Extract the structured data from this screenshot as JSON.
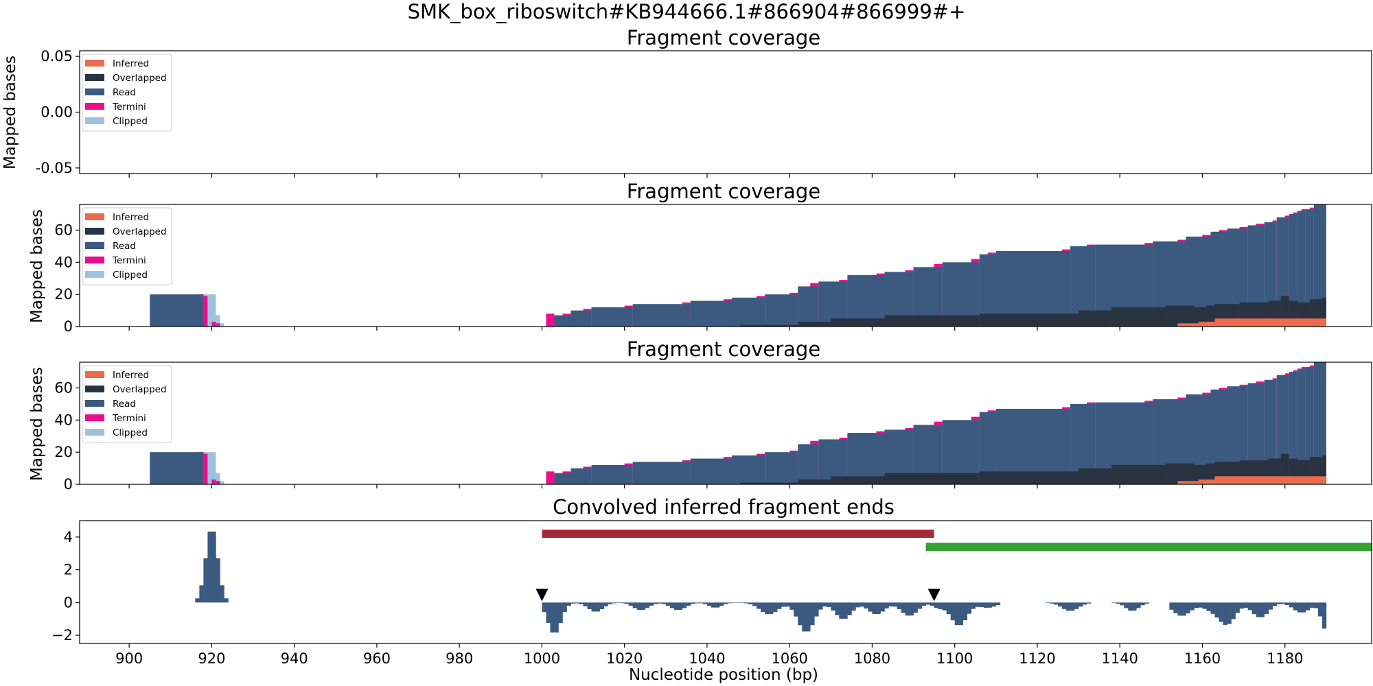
{
  "figure": {
    "suptitle": "SMK_box_riboswitch#KB944666.1#866904#866999#+",
    "x_label": "Nucleotide position (bp)",
    "x_ticks": [
      900,
      920,
      940,
      960,
      980,
      1000,
      1020,
      1040,
      1060,
      1080,
      1100,
      1120,
      1140,
      1160,
      1180
    ],
    "x_range": [
      888,
      1201
    ]
  },
  "colors": {
    "Inferred": "#ec6b4c",
    "Overlapped": "#283241",
    "Read": "#3c5a80",
    "Termini": "#ec0c8c",
    "Clipped": "#9ec2de",
    "Convolved": "#3c5a80",
    "Bar1": "#a52a3c",
    "Bar2": "#36a033"
  },
  "legend": [
    "Inferred",
    "Overlapped",
    "Read",
    "Termini",
    "Clipped"
  ],
  "chart_data": [
    {
      "type": "area",
      "title": "Fragment coverage",
      "ylabel": "Mapped bases",
      "ylim": [
        -0.055,
        0.055
      ],
      "y_ticks": [
        "0.05",
        "0.00",
        "-0.05"
      ],
      "y_tick_values": [
        0.05,
        0.0,
        -0.05
      ],
      "series": []
    },
    {
      "type": "area",
      "title": "Fragment coverage",
      "ylabel": "Mapped bases",
      "ylim": [
        0,
        76
      ],
      "y_ticks": [
        "0",
        "20",
        "40",
        "60"
      ],
      "y_tick_values": [
        0,
        20,
        40,
        60
      ],
      "coverage": {
        "clipped": [
          [
            918,
            921,
            20
          ],
          [
            921,
            922,
            7
          ],
          [
            922,
            923,
            2
          ]
        ],
        "read": [
          [
            905,
            918,
            20
          ],
          [
            1003,
            1007,
            7
          ],
          [
            1007,
            1012,
            10
          ],
          [
            1012,
            1022,
            12
          ],
          [
            1022,
            1036,
            14
          ],
          [
            1036,
            1046,
            16
          ],
          [
            1046,
            1054,
            18
          ],
          [
            1054,
            1062,
            20
          ],
          [
            1062,
            1067,
            25
          ],
          [
            1067,
            1074,
            28
          ],
          [
            1074,
            1083,
            32
          ],
          [
            1083,
            1090,
            34
          ],
          [
            1090,
            1097,
            37
          ],
          [
            1097,
            1106,
            40
          ],
          [
            1106,
            1110,
            45
          ],
          [
            1110,
            1128,
            47
          ],
          [
            1128,
            1134,
            50
          ],
          [
            1134,
            1148,
            51
          ],
          [
            1148,
            1156,
            53
          ],
          [
            1156,
            1162,
            56
          ],
          [
            1162,
            1166,
            59
          ],
          [
            1166,
            1171,
            61
          ],
          [
            1171,
            1175,
            63
          ],
          [
            1175,
            1178,
            65
          ],
          [
            1178,
            1181,
            68
          ],
          [
            1181,
            1183,
            70
          ],
          [
            1183,
            1185,
            72
          ],
          [
            1185,
            1187,
            73
          ],
          [
            1187,
            1190,
            76
          ]
        ],
        "termini": [
          [
            916,
            918,
            20
          ],
          [
            918,
            919,
            19
          ],
          [
            920,
            921,
            3
          ],
          [
            921,
            922,
            2
          ],
          [
            1001,
            1003,
            8
          ],
          [
            1005,
            1007,
            8
          ],
          [
            1010,
            1012,
            11
          ],
          [
            1020,
            1022,
            13
          ],
          [
            1034,
            1036,
            15
          ],
          [
            1044,
            1046,
            17
          ],
          [
            1052,
            1054,
            19
          ],
          [
            1060,
            1062,
            21
          ],
          [
            1065,
            1067,
            27
          ],
          [
            1072,
            1074,
            29
          ],
          [
            1081,
            1083,
            33
          ],
          [
            1088,
            1090,
            35
          ],
          [
            1095,
            1097,
            39
          ],
          [
            1104,
            1106,
            42
          ],
          [
            1108,
            1110,
            46
          ],
          [
            1126,
            1128,
            48
          ],
          [
            1132,
            1134,
            51
          ],
          [
            1146,
            1148,
            52
          ],
          [
            1154,
            1156,
            54
          ],
          [
            1160,
            1162,
            57
          ],
          [
            1164,
            1166,
            60
          ],
          [
            1169,
            1171,
            62
          ],
          [
            1173,
            1175,
            64
          ],
          [
            1177,
            1178,
            66
          ],
          [
            1180,
            1181,
            69
          ],
          [
            1182,
            1183,
            71
          ],
          [
            1184,
            1185,
            73
          ],
          [
            1186,
            1187,
            74
          ],
          [
            1188,
            1190,
            76
          ]
        ],
        "overlapped": [
          [
            1048,
            1062,
            1
          ],
          [
            1062,
            1070,
            3
          ],
          [
            1070,
            1083,
            5
          ],
          [
            1083,
            1106,
            7
          ],
          [
            1106,
            1130,
            8
          ],
          [
            1130,
            1138,
            10
          ],
          [
            1138,
            1151,
            12
          ],
          [
            1151,
            1158,
            13
          ],
          [
            1158,
            1161,
            12
          ],
          [
            1161,
            1163,
            13
          ],
          [
            1163,
            1169,
            14
          ],
          [
            1169,
            1176,
            15
          ],
          [
            1176,
            1179,
            16
          ],
          [
            1179,
            1181,
            19
          ],
          [
            1181,
            1183,
            16
          ],
          [
            1183,
            1186,
            15
          ],
          [
            1186,
            1189,
            17
          ],
          [
            1189,
            1190,
            18
          ]
        ],
        "inferred": [
          [
            1154,
            1159,
            2
          ],
          [
            1159,
            1163,
            3
          ],
          [
            1163,
            1190,
            5
          ]
        ]
      }
    },
    {
      "type": "area",
      "title": "Fragment coverage",
      "ylabel": "Mapped bases",
      "ylim": [
        0,
        76
      ],
      "y_ticks": [
        "0",
        "20",
        "40",
        "60"
      ],
      "y_tick_values": [
        0,
        20,
        40,
        60
      ],
      "coverage": {
        "clipped": [
          [
            918,
            921,
            20
          ],
          [
            921,
            922,
            7
          ],
          [
            922,
            923,
            2
          ]
        ],
        "read": [
          [
            905,
            918,
            20
          ],
          [
            1003,
            1007,
            7
          ],
          [
            1007,
            1012,
            10
          ],
          [
            1012,
            1022,
            12
          ],
          [
            1022,
            1036,
            14
          ],
          [
            1036,
            1046,
            16
          ],
          [
            1046,
            1054,
            18
          ],
          [
            1054,
            1062,
            20
          ],
          [
            1062,
            1067,
            25
          ],
          [
            1067,
            1074,
            28
          ],
          [
            1074,
            1083,
            32
          ],
          [
            1083,
            1090,
            34
          ],
          [
            1090,
            1097,
            37
          ],
          [
            1097,
            1106,
            40
          ],
          [
            1106,
            1110,
            45
          ],
          [
            1110,
            1128,
            47
          ],
          [
            1128,
            1134,
            50
          ],
          [
            1134,
            1148,
            51
          ],
          [
            1148,
            1156,
            53
          ],
          [
            1156,
            1162,
            56
          ],
          [
            1162,
            1166,
            59
          ],
          [
            1166,
            1171,
            61
          ],
          [
            1171,
            1175,
            63
          ],
          [
            1175,
            1178,
            65
          ],
          [
            1178,
            1181,
            68
          ],
          [
            1181,
            1183,
            70
          ],
          [
            1183,
            1185,
            72
          ],
          [
            1185,
            1187,
            73
          ],
          [
            1187,
            1190,
            76
          ]
        ],
        "termini": [
          [
            916,
            918,
            20
          ],
          [
            918,
            919,
            19
          ],
          [
            920,
            921,
            3
          ],
          [
            921,
            922,
            2
          ],
          [
            1001,
            1003,
            8
          ],
          [
            1005,
            1007,
            8
          ],
          [
            1010,
            1012,
            11
          ],
          [
            1020,
            1022,
            13
          ],
          [
            1034,
            1036,
            15
          ],
          [
            1044,
            1046,
            17
          ],
          [
            1052,
            1054,
            19
          ],
          [
            1060,
            1062,
            21
          ],
          [
            1065,
            1067,
            27
          ],
          [
            1072,
            1074,
            29
          ],
          [
            1081,
            1083,
            33
          ],
          [
            1088,
            1090,
            35
          ],
          [
            1095,
            1097,
            39
          ],
          [
            1104,
            1106,
            42
          ],
          [
            1108,
            1110,
            46
          ],
          [
            1126,
            1128,
            48
          ],
          [
            1132,
            1134,
            51
          ],
          [
            1146,
            1148,
            52
          ],
          [
            1154,
            1156,
            54
          ],
          [
            1160,
            1162,
            57
          ],
          [
            1164,
            1166,
            60
          ],
          [
            1169,
            1171,
            62
          ],
          [
            1173,
            1175,
            64
          ],
          [
            1177,
            1178,
            66
          ],
          [
            1180,
            1181,
            69
          ],
          [
            1182,
            1183,
            71
          ],
          [
            1184,
            1185,
            73
          ],
          [
            1186,
            1187,
            74
          ],
          [
            1188,
            1190,
            76
          ]
        ],
        "overlapped": [
          [
            1048,
            1062,
            1
          ],
          [
            1062,
            1070,
            3
          ],
          [
            1070,
            1083,
            5
          ],
          [
            1083,
            1106,
            7
          ],
          [
            1106,
            1130,
            8
          ],
          [
            1130,
            1138,
            10
          ],
          [
            1138,
            1151,
            12
          ],
          [
            1151,
            1158,
            13
          ],
          [
            1158,
            1161,
            12
          ],
          [
            1161,
            1163,
            13
          ],
          [
            1163,
            1169,
            14
          ],
          [
            1169,
            1176,
            15
          ],
          [
            1176,
            1179,
            16
          ],
          [
            1179,
            1181,
            19
          ],
          [
            1181,
            1183,
            16
          ],
          [
            1183,
            1186,
            15
          ],
          [
            1186,
            1189,
            17
          ],
          [
            1189,
            1190,
            18
          ]
        ],
        "inferred": [
          [
            1154,
            1159,
            2
          ],
          [
            1159,
            1163,
            3
          ],
          [
            1163,
            1190,
            5
          ]
        ]
      }
    },
    {
      "type": "bar",
      "title": "Convolved inferred fragment ends",
      "ylabel": "",
      "ylim": [
        -2.5,
        5.0
      ],
      "y_ticks": [
        "4",
        "2",
        "0",
        "−2"
      ],
      "y_tick_values": [
        4,
        2,
        0,
        -2
      ],
      "positive_peaks": [
        {
          "center": 920,
          "width": 3.2,
          "height": 4.6
        }
      ],
      "negative_dips": [
        {
          "center": 1003,
          "width": 1.6,
          "depth": 1.9
        },
        {
          "center": 1013,
          "width": 1.8,
          "depth": 0.55
        },
        {
          "center": 1024,
          "width": 1.8,
          "depth": 0.45
        },
        {
          "center": 1033,
          "width": 1.8,
          "depth": 0.45
        },
        {
          "center": 1042,
          "width": 1.5,
          "depth": 0.3
        },
        {
          "center": 1055,
          "width": 2.2,
          "depth": 0.7
        },
        {
          "center": 1064,
          "width": 2.0,
          "depth": 1.8
        },
        {
          "center": 1073,
          "width": 2.0,
          "depth": 1.0
        },
        {
          "center": 1081,
          "width": 2.0,
          "depth": 0.7
        },
        {
          "center": 1089,
          "width": 2.0,
          "depth": 0.8
        },
        {
          "center": 1096,
          "width": 1.3,
          "depth": 0.3
        },
        {
          "center": 1101,
          "width": 2.0,
          "depth": 1.4
        },
        {
          "center": 1108,
          "width": 2.0,
          "depth": 0.3
        },
        {
          "center": 1128,
          "width": 2.0,
          "depth": 0.5
        },
        {
          "center": 1143,
          "width": 1.6,
          "depth": 0.5
        },
        {
          "center": 1155,
          "width": 2.2,
          "depth": 0.8
        },
        {
          "center": 1162,
          "width": 2.0,
          "depth": 0.4
        },
        {
          "center": 1166,
          "width": 2.0,
          "depth": 1.3
        },
        {
          "center": 1174,
          "width": 2.0,
          "depth": 0.9
        },
        {
          "center": 1184,
          "width": 2.0,
          "depth": 0.6
        },
        {
          "center": 1190,
          "width": 1.2,
          "depth": 1.7
        }
      ],
      "gaps": [
        [
          1111,
          1122
        ],
        [
          1133,
          1138
        ],
        [
          1147,
          1152
        ]
      ],
      "negative_span": [
        1000,
        1190
      ],
      "range_bars": [
        {
          "x0": 1000,
          "x1": 1095,
          "y": 4.2
        },
        {
          "x0": 1093,
          "x1": 1201,
          "y": 3.4
        }
      ],
      "markers": [
        1000,
        1095
      ]
    }
  ]
}
